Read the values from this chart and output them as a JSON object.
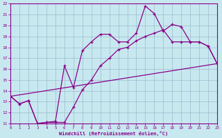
{
  "bg_color": "#c8e8f0",
  "line_color": "#880088",
  "grid_color": "#99bbcc",
  "xlim": [
    0,
    23
  ],
  "ylim": [
    11,
    22
  ],
  "xticks": [
    0,
    1,
    2,
    3,
    4,
    5,
    6,
    7,
    8,
    9,
    10,
    11,
    12,
    13,
    14,
    15,
    16,
    17,
    18,
    19,
    20,
    21,
    22,
    23
  ],
  "yticks": [
    11,
    12,
    13,
    14,
    15,
    16,
    17,
    18,
    19,
    20,
    21,
    22
  ],
  "xlabel": "Windchill (Refroidissement éolien,°C)",
  "line1_x": [
    0,
    1,
    2,
    3,
    4,
    5,
    6,
    7,
    8,
    9,
    10,
    11,
    12,
    13,
    14,
    15,
    16,
    17,
    18,
    19,
    20,
    21,
    22,
    23
  ],
  "line1_y": [
    13.5,
    12.8,
    13.1,
    11.0,
    11.1,
    11.1,
    11.1,
    12.5,
    14.1,
    15.0,
    16.3,
    17.0,
    17.8,
    18.0,
    18.6,
    19.0,
    19.3,
    19.6,
    18.5,
    18.5,
    18.5,
    18.5,
    18.1,
    16.5
  ],
  "line2_x": [
    0,
    1,
    2,
    3,
    4,
    5,
    6,
    7,
    8,
    9,
    10,
    11,
    12,
    13,
    14,
    15,
    16,
    17,
    18,
    19,
    20,
    21,
    22,
    23
  ],
  "line2_y": [
    13.5,
    12.8,
    13.1,
    11.0,
    11.1,
    11.2,
    16.3,
    14.3,
    17.7,
    18.5,
    19.2,
    19.2,
    18.5,
    18.5,
    19.3,
    21.8,
    21.1,
    19.5,
    20.1,
    19.9,
    18.5,
    18.5,
    18.1,
    16.5
  ],
  "line3_x": [
    0,
    23
  ],
  "line3_y": [
    13.5,
    16.5
  ]
}
